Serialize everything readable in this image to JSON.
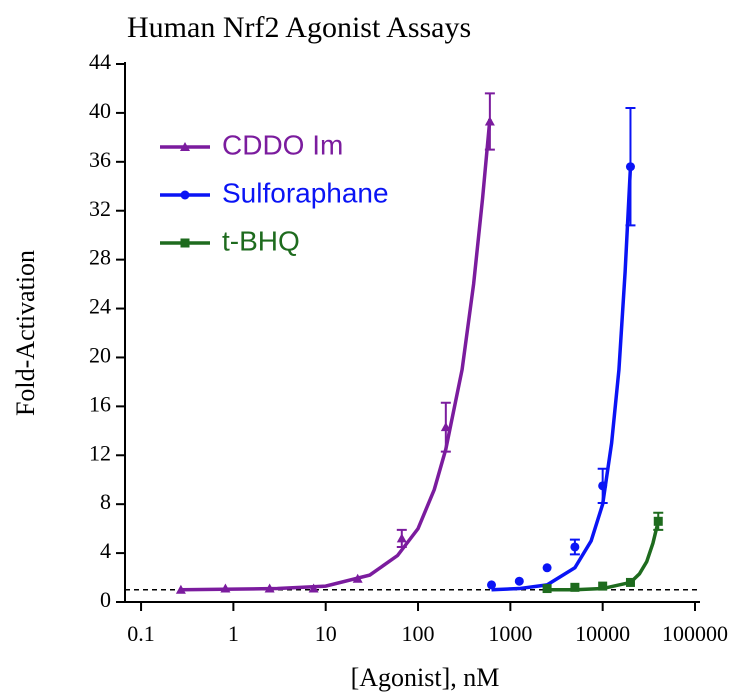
{
  "chart_data": {
    "type": "scatter",
    "title": "Human Nrf2 Agonist Assays",
    "x_label": "[Agonist], nM",
    "y_label": "Fold-Activation",
    "x_scale": "log",
    "xlim": [
      0.067,
      100000
    ],
    "xticks": [
      0.1,
      1,
      10,
      100,
      1000,
      10000,
      100000
    ],
    "ylim": [
      0,
      44
    ],
    "yticks": [
      0,
      4,
      8,
      12,
      16,
      20,
      24,
      28,
      32,
      36,
      40,
      44
    ],
    "baseline": 1,
    "legend": "upper-left",
    "series": [
      {
        "name": "CDDO Im",
        "color": "#7b1c9e",
        "marker": "triangle",
        "x": [
          0.27,
          0.82,
          2.47,
          7.4,
          22.2,
          66.7,
          200,
          600
        ],
        "values": [
          1.0,
          1.1,
          1.1,
          1.1,
          1.9,
          5.2,
          14.3,
          39.3
        ],
        "errors": [
          null,
          null,
          null,
          null,
          null,
          0.7,
          2.0,
          2.3
        ],
        "curve": {
          "x": [
            0.27,
            1,
            3,
            10,
            30,
            60,
            100,
            150,
            200,
            300,
            400,
            500,
            600
          ],
          "values": [
            1.0,
            1.05,
            1.1,
            1.3,
            2.2,
            3.8,
            6,
            9.2,
            12.5,
            19,
            26,
            33,
            39.5
          ]
        }
      },
      {
        "name": "Sulforaphane",
        "color": "#0a14f5",
        "marker": "circle",
        "x": [
          625,
          1250,
          2500,
          5000,
          10000,
          20000
        ],
        "values": [
          1.4,
          1.7,
          2.8,
          4.5,
          9.5,
          35.6
        ],
        "errors": [
          null,
          null,
          null,
          0.6,
          1.4,
          4.8
        ],
        "curve": {
          "x": [
            625,
            1250,
            2500,
            5000,
            7500,
            10000,
            12500,
            15000,
            17500,
            20000
          ],
          "values": [
            1.0,
            1.1,
            1.4,
            2.8,
            5,
            8,
            13,
            19,
            27,
            35.6
          ]
        }
      },
      {
        "name": "t-BHQ",
        "color": "#1e6b1e",
        "marker": "square",
        "x": [
          2500,
          5000,
          10000,
          20000,
          40000
        ],
        "values": [
          1.1,
          1.2,
          1.3,
          1.6,
          6.6
        ],
        "errors": [
          null,
          null,
          null,
          null,
          0.7
        ],
        "curve": {
          "x": [
            2500,
            5000,
            10000,
            20000,
            25000,
            30000,
            35000,
            40000
          ],
          "values": [
            1.0,
            1.0,
            1.1,
            1.6,
            2.3,
            3.3,
            4.8,
            6.6
          ]
        }
      }
    ]
  }
}
